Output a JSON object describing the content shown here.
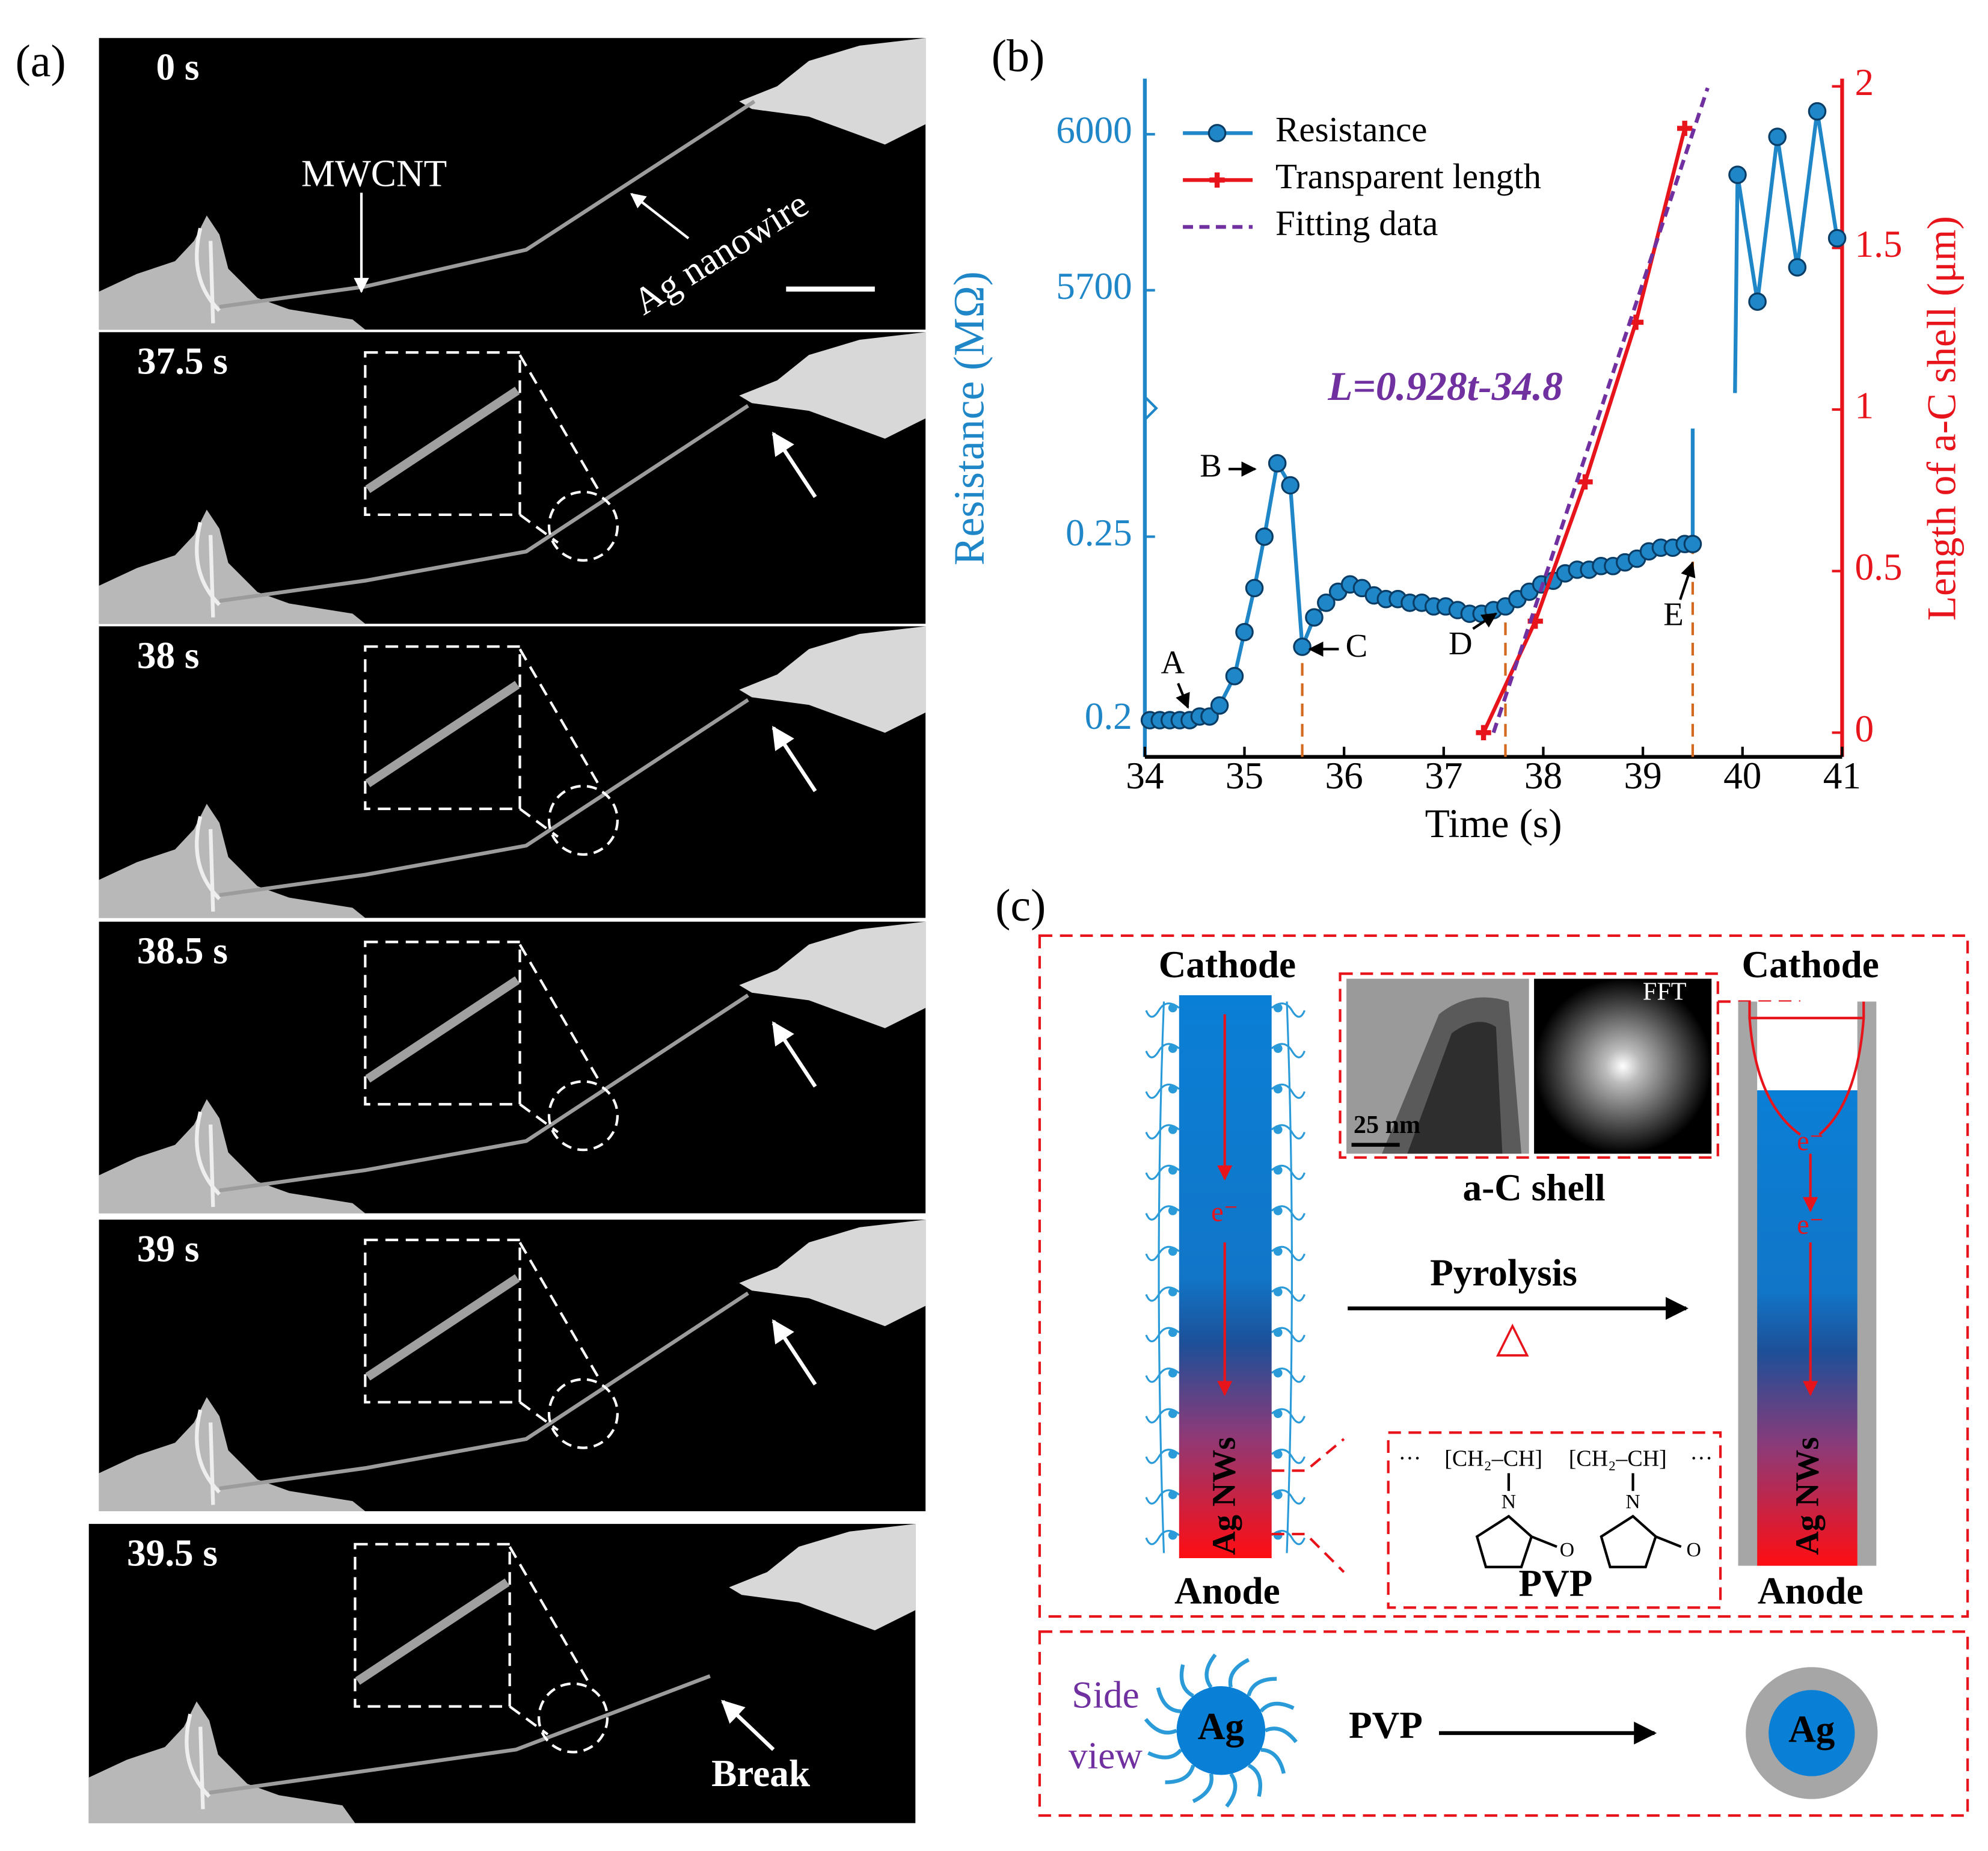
{
  "panel_labels": [
    "(a)",
    "(b)",
    "(c)"
  ],
  "panel_a": {
    "frames": [
      "0 s",
      "37.5 s",
      "38 s",
      "38.5 s",
      "39 s",
      "39.5 s"
    ],
    "mwcnt": "MWCNT",
    "nanowire": "Ag nanowire",
    "break": "Break"
  },
  "chart_data": {
    "type": "line",
    "x_label": "Time (s)",
    "y_label": "Resistance (MΩ)",
    "y2_label": "Length of a-C shell (μm)",
    "xlim": [
      34,
      41
    ],
    "xticks": [
      34,
      35,
      36,
      37,
      38,
      39,
      40,
      41
    ],
    "y_segments": [
      {
        "ylim": [
          0.19,
          0.285
        ],
        "yticks": [
          0.2,
          0.25
        ]
      },
      {
        "ylim": [
          5473,
          6107
        ],
        "yticks": [
          5700,
          6000
        ]
      }
    ],
    "y2lim": [
      -0.075,
      2.024
    ],
    "y2ticks": [
      0,
      0.5,
      1,
      1.5,
      2
    ],
    "legend": "upper left",
    "series": [
      {
        "name": "Resistance",
        "color": "#1f86c8",
        "marker": "circle",
        "x": [
          34.05,
          34.15,
          34.25,
          34.35,
          34.45,
          34.55,
          34.65,
          34.75,
          34.9,
          35.0,
          35.1,
          35.2,
          35.33,
          35.46,
          35.58,
          35.7,
          35.82,
          35.94,
          36.06,
          36.18,
          36.3,
          36.42,
          36.54,
          36.66,
          36.78,
          36.9,
          37.02,
          37.14,
          37.26,
          37.38,
          37.5,
          37.62,
          37.74,
          37.86,
          37.98,
          38.1,
          38.22,
          38.34,
          38.46,
          38.58,
          38.7,
          38.82,
          38.94,
          39.06,
          39.18,
          39.3,
          39.42,
          39.5,
          39.95,
          40.15,
          40.35,
          40.55,
          40.75,
          40.95
        ],
        "values": [
          0.2,
          0.2,
          0.2,
          0.2,
          0.2,
          0.201,
          0.201,
          0.204,
          0.212,
          0.224,
          0.236,
          0.25,
          0.27,
          0.264,
          0.22,
          0.228,
          0.232,
          0.235,
          0.237,
          0.236,
          0.234,
          0.233,
          0.233,
          0.232,
          0.232,
          0.231,
          0.231,
          0.23,
          0.229,
          0.229,
          0.23,
          0.231,
          0.233,
          0.235,
          0.237,
          0.238,
          0.24,
          0.241,
          0.241,
          0.242,
          0.242,
          0.243,
          0.244,
          0.246,
          0.247,
          0.247,
          0.248,
          0.248,
          5922,
          5678,
          5995,
          5744,
          6044,
          5800
        ]
      },
      {
        "name": "Transparent length",
        "color": "#e8141b",
        "marker": "plus",
        "axis": "y2",
        "x": [
          37.4,
          37.92,
          38.42,
          38.93,
          39.42
        ],
        "values": [
          0,
          0.345,
          0.776,
          1.27,
          1.87
        ]
      },
      {
        "name": "Fitting data",
        "color": "#7030a0",
        "style": "dashed",
        "axis": "y2",
        "x": [
          37.5,
          39.65
        ],
        "values": [
          0,
          1.995
        ]
      }
    ],
    "annotations": [
      "A",
      "B",
      "C",
      "D",
      "E"
    ],
    "equation": "L=0.928t-34.8"
  },
  "panel_c": {
    "cathode": "Cathode",
    "anode": "Anode",
    "ag_nws": "Ag NWs",
    "electron": "e⁻",
    "fft": "FFT",
    "scale": "25 nm",
    "shell": "a-C shell",
    "pyrolysis": "Pyrolysis",
    "heat": "△",
    "pvp_chain": [
      "···",
      "[CH₂–CH]",
      "[CH₂–CH]",
      "···"
    ],
    "atoms": [
      "N",
      "O"
    ],
    "pvp": "PVP",
    "side_view": [
      "Side",
      "view"
    ],
    "ag": "Ag"
  }
}
